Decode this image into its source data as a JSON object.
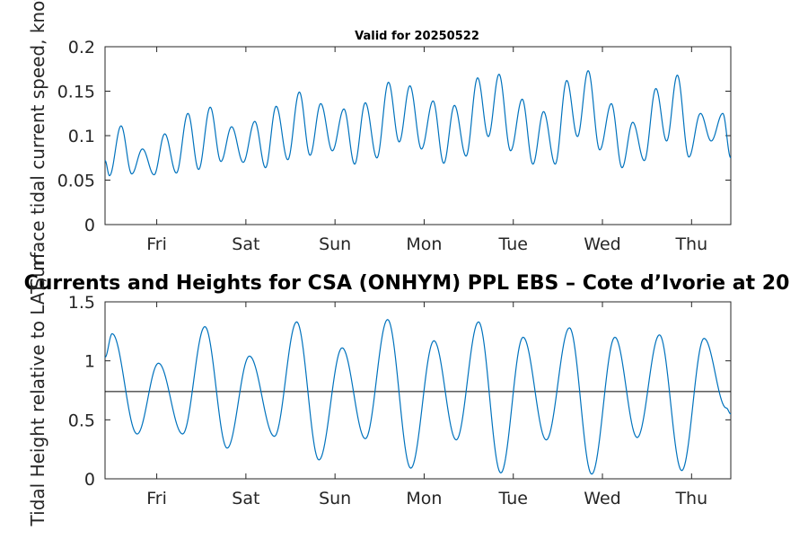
{
  "chart_data": [
    {
      "type": "line",
      "title": "Valid for 20250522",
      "ylabel": "Surface tidal current speed, knots",
      "xlim": [
        0,
        7.02
      ],
      "ylim": [
        0,
        0.2
      ],
      "yticks": [
        0,
        0.05,
        0.1,
        0.15,
        0.2
      ],
      "ytick_labels": [
        "0",
        "0.05",
        "0.1",
        "0.15",
        "0.2"
      ],
      "xtick_positions": [
        0.58,
        1.58,
        2.58,
        3.58,
        4.58,
        5.58,
        6.58
      ],
      "xtick_labels": [
        "Fri",
        "Sat",
        "Sun",
        "Mon",
        "Tue",
        "Wed",
        "Thu"
      ],
      "line_color": "#0072bd",
      "series": [
        {
          "x": [
            0.0,
            0.05,
            0.18,
            0.3,
            0.42,
            0.55,
            0.67,
            0.8,
            0.93,
            1.05,
            1.18,
            1.3,
            1.42,
            1.55,
            1.68,
            1.8,
            1.92,
            2.05,
            2.18,
            2.3,
            2.42,
            2.55,
            2.68,
            2.8,
            2.92,
            3.05,
            3.18,
            3.3,
            3.42,
            3.55,
            3.68,
            3.8,
            3.92,
            4.05,
            4.18,
            4.3,
            4.42,
            4.55,
            4.68,
            4.8,
            4.92,
            5.05,
            5.18,
            5.3,
            5.42,
            5.55,
            5.68,
            5.8,
            5.92,
            6.05,
            6.18,
            6.3,
            6.42,
            6.55,
            6.68,
            6.8,
            6.93,
            7.02
          ],
          "values": [
            0.072,
            0.055,
            0.111,
            0.057,
            0.085,
            0.056,
            0.102,
            0.058,
            0.125,
            0.062,
            0.132,
            0.071,
            0.11,
            0.07,
            0.116,
            0.064,
            0.133,
            0.073,
            0.149,
            0.078,
            0.136,
            0.083,
            0.13,
            0.068,
            0.137,
            0.075,
            0.16,
            0.093,
            0.156,
            0.085,
            0.139,
            0.069,
            0.134,
            0.077,
            0.165,
            0.099,
            0.169,
            0.083,
            0.141,
            0.068,
            0.127,
            0.068,
            0.162,
            0.099,
            0.173,
            0.084,
            0.136,
            0.064,
            0.115,
            0.072,
            0.153,
            0.094,
            0.168,
            0.076,
            0.125,
            0.094,
            0.125,
            0.075
          ]
        }
      ]
    },
    {
      "type": "line",
      "title": "Currents and Heights for CSA (ONHYM) PPL EBS  – Cote d’Ivorie at 20",
      "ylabel": "Tidal Height relative to LAT, m",
      "xlim": [
        0,
        7.02
      ],
      "ylim": [
        0,
        1.5
      ],
      "yticks": [
        0,
        0.5,
        1,
        1.5
      ],
      "ytick_labels": [
        "0",
        "0.5",
        "1",
        "1.5"
      ],
      "xtick_positions": [
        0.58,
        1.58,
        2.58,
        3.58,
        4.58,
        5.58,
        6.58
      ],
      "xtick_labels": [
        "Fri",
        "Sat",
        "Sun",
        "Mon",
        "Tue",
        "Wed",
        "Thu"
      ],
      "line_color": "#0072bd",
      "reference_level": 0.74,
      "reference_color": "#000000",
      "series": [
        {
          "x": [
            0.0,
            0.08,
            0.36,
            0.6,
            0.87,
            1.12,
            1.37,
            1.62,
            1.9,
            2.15,
            2.4,
            2.66,
            2.92,
            3.17,
            3.43,
            3.69,
            3.94,
            4.19,
            4.44,
            4.69,
            4.95,
            5.21,
            5.46,
            5.72,
            5.97,
            6.22,
            6.47,
            6.72,
            6.97,
            7.02
          ],
          "values": [
            1.03,
            1.23,
            0.38,
            0.98,
            0.38,
            1.29,
            0.26,
            1.04,
            0.36,
            1.33,
            0.16,
            1.11,
            0.34,
            1.35,
            0.09,
            1.17,
            0.33,
            1.33,
            0.05,
            1.2,
            0.33,
            1.28,
            0.04,
            1.2,
            0.35,
            1.22,
            0.07,
            1.19,
            0.6,
            0.55
          ]
        }
      ]
    }
  ]
}
